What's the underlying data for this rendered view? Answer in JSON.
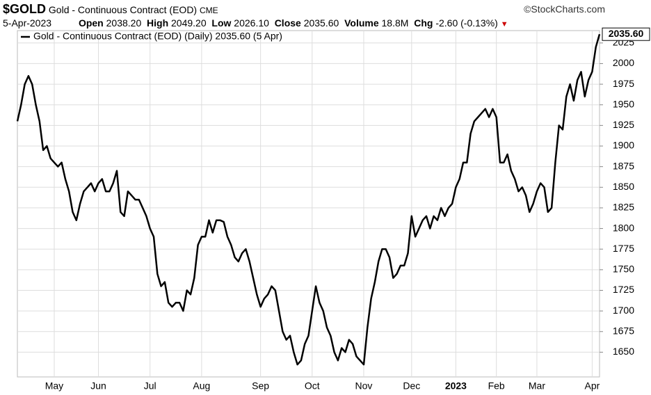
{
  "header": {
    "symbol": "$GOLD",
    "name": "Gold - Continuous Contract (EOD)",
    "exchange": "CME",
    "credit": "©StockCharts.com",
    "date": "5-Apr-2023",
    "open_label": "Open",
    "open": "2038.20",
    "high_label": "High",
    "high": "2049.20",
    "low_label": "Low",
    "low": "2026.10",
    "close_label": "Close",
    "close": "2035.60",
    "volume_label": "Volume",
    "volume": "18.8M",
    "chg_label": "Chg",
    "chg": "-2.60 (-0.13%)"
  },
  "chart_data": {
    "type": "line",
    "grid": true,
    "categories": [
      null,
      null,
      null,
      null,
      null,
      null,
      null,
      null,
      null,
      null,
      "May",
      null,
      null,
      null,
      null,
      null,
      null,
      null,
      null,
      null,
      null,
      null,
      "Jun",
      null,
      null,
      null,
      null,
      null,
      null,
      null,
      null,
      null,
      null,
      null,
      null,
      null,
      "Jul",
      null,
      null,
      null,
      null,
      null,
      null,
      null,
      null,
      null,
      null,
      null,
      null,
      null,
      "Aug",
      null,
      null,
      null,
      null,
      null,
      null,
      null,
      null,
      null,
      null,
      null,
      null,
      null,
      null,
      null,
      "Sep",
      null,
      null,
      null,
      null,
      null,
      null,
      null,
      null,
      null,
      null,
      null,
      null,
      null,
      "Oct",
      null,
      null,
      null,
      null,
      null,
      null,
      null,
      null,
      null,
      null,
      null,
      null,
      null,
      "Nov",
      null,
      null,
      null,
      null,
      null,
      null,
      null,
      null,
      null,
      null,
      null,
      null,
      "Dec",
      null,
      null,
      null,
      null,
      null,
      null,
      null,
      null,
      null,
      null,
      null,
      "2023",
      null,
      null,
      null,
      null,
      null,
      null,
      null,
      null,
      null,
      null,
      "Feb",
      null,
      null,
      null,
      null,
      null,
      null,
      null,
      null,
      null,
      null,
      "Mar",
      null,
      null,
      null,
      null,
      null,
      null,
      null,
      null,
      null,
      null,
      null,
      null,
      null,
      null,
      "Apr",
      null,
      null
    ],
    "series": [
      {
        "name": "Gold - Continuous Contract (EOD) (Daily) 2035.60 (5 Apr)",
        "color": "#000000",
        "values": [
          1930,
          1950,
          1975,
          1985,
          1975,
          1950,
          1930,
          1895,
          1900,
          1885,
          1880,
          1875,
          1880,
          1860,
          1845,
          1820,
          1810,
          1830,
          1845,
          1850,
          1855,
          1845,
          1855,
          1860,
          1845,
          1845,
          1855,
          1870,
          1820,
          1815,
          1845,
          1840,
          1835,
          1835,
          1825,
          1815,
          1800,
          1790,
          1745,
          1730,
          1735,
          1710,
          1705,
          1710,
          1710,
          1700,
          1725,
          1720,
          1740,
          1780,
          1790,
          1790,
          1810,
          1795,
          1810,
          1810,
          1808,
          1790,
          1780,
          1765,
          1760,
          1770,
          1775,
          1760,
          1740,
          1720,
          1705,
          1715,
          1720,
          1730,
          1725,
          1700,
          1675,
          1665,
          1670,
          1650,
          1635,
          1640,
          1660,
          1670,
          1700,
          1730,
          1710,
          1700,
          1680,
          1670,
          1650,
          1640,
          1655,
          1650,
          1665,
          1660,
          1645,
          1640,
          1635,
          1680,
          1715,
          1735,
          1760,
          1775,
          1775,
          1765,
          1740,
          1745,
          1755,
          1755,
          1770,
          1815,
          1790,
          1800,
          1810,
          1815,
          1800,
          1815,
          1810,
          1825,
          1815,
          1825,
          1830,
          1850,
          1860,
          1880,
          1880,
          1915,
          1930,
          1935,
          1940,
          1945,
          1935,
          1945,
          1935,
          1880,
          1880,
          1890,
          1870,
          1860,
          1845,
          1850,
          1840,
          1820,
          1830,
          1845,
          1855,
          1850,
          1820,
          1825,
          1880,
          1925,
          1920,
          1960,
          1975,
          1955,
          1980,
          1990,
          1960,
          1980,
          1990,
          2020,
          2035.6
        ]
      }
    ],
    "last_value_label": "2035.60",
    "ylim": [
      1620,
      2040
    ],
    "yticks": [
      1650,
      1675,
      1700,
      1725,
      1750,
      1775,
      1800,
      1825,
      1850,
      1875,
      1900,
      1925,
      1950,
      1975,
      2000,
      2025
    ]
  }
}
